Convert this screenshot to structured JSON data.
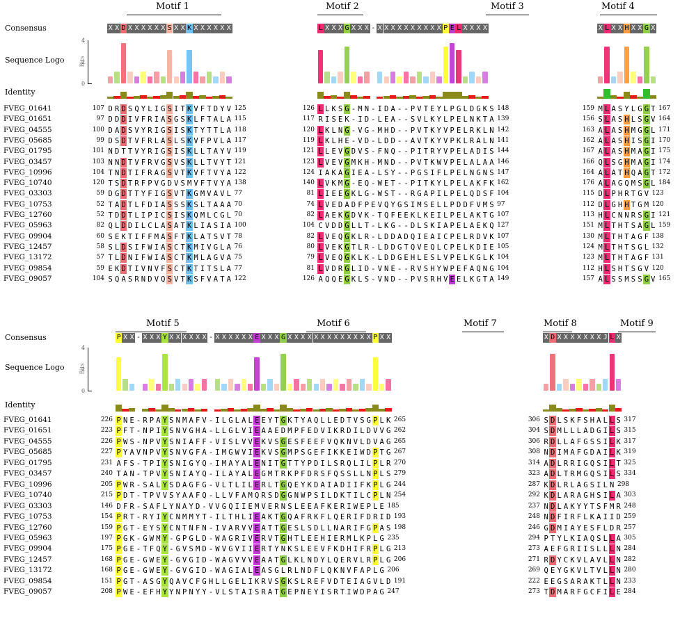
{
  "labels": {
    "consensus": "Consensus",
    "logo": "Sequence Logo",
    "identity": "Identity",
    "bits": "Bits",
    "axis_ticks": [
      "4",
      "2",
      "0"
    ]
  },
  "colors": {
    "D": "#ef6b74",
    "E": "#c23bd0",
    "K": "#6ec1f2",
    "R": "#6ec1f2",
    "S": "#f6b29e",
    "T": "#f6b29e",
    "G": "#8fce45",
    "Y": "#a8e23e",
    "P": "#ffff33",
    "L": "#ee2a72",
    "H": "#ff9a3c",
    "consensus_bg": "#666666",
    "identity_high": "#8a8a1a",
    "identity_low": "#e51b1b",
    "identity_full": "#2fbf2f"
  },
  "top": {
    "blocks": [
      {
        "consensus": "XXDXXXXXXSXXKXXXXXX",
        "highlight": {
          "2": "D",
          "9": "S",
          "12": "K"
        }
      },
      {
        "consensus": "LXXXGXXX-XXXXXXXXXXPELXXXX",
        "highlight": {
          "0": "L",
          "4": "G",
          "19": "P",
          "20": "E",
          "21": "L"
        }
      },
      {
        "consensus": "XLXXHXXGX",
        "highlight": {
          "1": "L",
          "4": "H",
          "7": "G"
        }
      }
    ],
    "motifs": [
      {
        "label": "Motif 1"
      },
      {
        "label": "Motif 2"
      },
      {
        "label": "Motif 3"
      },
      {
        "label": "Motif 4"
      }
    ],
    "sequences": [
      {
        "name": "FVEG_01641",
        "n": [
          "107",
          "125",
          "126",
          "148",
          "159",
          "167"
        ],
        "s": [
          "DRDSQYLIGSITKVFTDYV",
          "LLKSG-MN-IDA--PVTEYLPGLDGKS",
          "MLASYLGGT"
        ]
      },
      {
        "name": "FVEG_01651",
        "n": [
          "97",
          "115",
          "117",
          "139",
          "156",
          "164"
        ],
        "s": [
          "DDDIVFRIASGSKLFTALA",
          "RISEK-ID-LEA--SVLKYLPELNKTA",
          "SLASHLSGV"
        ]
      },
      {
        "name": "FVEG_04555",
        "n": [
          "100",
          "118",
          "120",
          "142",
          "163",
          "171"
        ],
        "s": [
          "DADSVYRIGSISKTYTTLA",
          "LKLNG-VG-MHD--PVTKYVPELRKLN",
          "ALASHMGGL"
        ]
      },
      {
        "name": "FVEG_05685",
        "n": [
          "99",
          "117",
          "119",
          "141",
          "162",
          "170"
        ],
        "s": [
          "DSDTVFRLASLSKVFPVLA",
          "LKLHE-VD-LDD--AVTKYVPKLRALN",
          "ALASHISGI"
        ]
      },
      {
        "name": "FVEG_01795",
        "n": [
          "101",
          "119",
          "121",
          "144",
          "167",
          "175"
        ],
        "s": [
          "NDTTVYRIGSISKLLTAYV",
          "LLEVGDVS-FNQ--PITRYVPELADIS",
          "ALASHMAGI"
        ]
      },
      {
        "name": "FVEG_03457",
        "n": [
          "103",
          "121",
          "123",
          "146",
          "166",
          "174"
        ],
        "s": [
          "NNDTVFRVGSVSKLLTVYT",
          "LVEVGMKH-MND--PVTKWVPELALAA",
          "QLSGHMAGI"
        ]
      },
      {
        "name": "FVEG_10996",
        "n": [
          "104",
          "122",
          "124",
          "147",
          "164",
          "172"
        ],
        "s": [
          "TNDTIFRAGSVTKVFTVYA",
          "IAKAGIEA-LSY--PGSIFLPELNGNS",
          "ALATHQAGT"
        ]
      },
      {
        "name": "FVEG_10740",
        "n": [
          "120",
          "138",
          "140",
          "162",
          "176",
          "184"
        ],
        "s": [
          "TSDTRFPVGDVSMVFTVYA",
          "LVKMG-EQ-WET--PITKYLPELAKFK",
          "ALAGQMSGL"
        ]
      },
      {
        "name": "FVEG_03303",
        "n": [
          "59",
          "77",
          "81",
          "104",
          "115",
          "123"
        ],
        "s": [
          "DGDTTYFIGSVTKGMVAVL",
          "LIEEGKLG-WST--RGAPILPELQDSF",
          "DLPHRTGV"
        ]
      },
      {
        "name": "FVEG_10753",
        "n": [
          "52",
          "70",
          "74",
          "97",
          "112",
          "120"
        ],
        "s": [
          "TADTLFDIASSSKSLTAAA",
          "LVEDADFPEVQYGSIMSELLPDDFVMS",
          "DLGHHTGM"
        ]
      },
      {
        "name": "FVEG_12760",
        "n": [
          "52",
          "70",
          "82",
          "107",
          "113",
          "121"
        ],
        "s": [
          "TDDTLIPICSISKQMLCGL",
          "LAEKGDVK-TQFEEKLKEILPELAKTG",
          "HLCNNRSGI"
        ]
      },
      {
        "name": "FVEG_05963",
        "n": [
          "82",
          "100",
          "104",
          "127",
          "151",
          "159"
        ],
        "s": [
          "QLDDILCLASATKLIASIA",
          "CVDDGLLT-LKG--DLSKIAPELAEKQ",
          "MLTHTSAGL"
        ]
      },
      {
        "name": "FVEG_09904",
        "n": [
          "60",
          "78",
          "82",
          "107",
          "130",
          "138"
        ],
        "s": [
          "SEKTIFFMASFTKLATSVT",
          "LVEQGKLR-LDDADQIEAICPELRDVK",
          "MLTHTAGF"
        ]
      },
      {
        "name": "FVEG_12457",
        "n": [
          "58",
          "76",
          "80",
          "105",
          "124",
          "132"
        ],
        "s": [
          "SLDSIFWIASCTKMIVGLA",
          "LVEKGTLR-LDDGTQVEQLCPELKDIE",
          "MLTHTSGL"
        ]
      },
      {
        "name": "FVEG_13172",
        "n": [
          "57",
          "75",
          "79",
          "104",
          "123",
          "131"
        ],
        "s": [
          "TLDNIFWIASCTKMLAGVA",
          "LVEQGKLK-LDDGEHLESLVPELKGLK",
          "MLTHTAGF"
        ]
      },
      {
        "name": "FVEG_09854",
        "n": [
          "59",
          "77",
          "81",
          "104",
          "112",
          "120"
        ],
        "s": [
          "EKDTIVNVFSCTKTITSLA",
          "LVDRGLID-VNE--RVSHYWPEFAQNG",
          "HLSHTSGV"
        ]
      },
      {
        "name": "FVEG_09057",
        "n": [
          "104",
          "122",
          "126",
          "149",
          "157",
          "165"
        ],
        "s": [
          "SQASRNDVQSVTKSFVATA",
          "AQQEGKLS-VND--PVSRHVEELKGTA",
          "ALSSMSSGV"
        ]
      }
    ]
  },
  "bottom": {
    "blocks": [
      {
        "consensus": "PXX-XXXYXXXXXX-XXXXXXEXXXGXXXXXXXXXXXXXPXX",
        "highlight": {
          "0": "P",
          "7": "Y",
          "21": "E",
          "25": "G",
          "39": "P"
        }
      },
      {
        "consensus": "XDXXXXXXXJLX",
        "highlight": {
          "1": "D",
          "10": "L"
        }
      }
    ],
    "motifs": [
      {
        "label": "Motif 5"
      },
      {
        "label": "Motif 6"
      },
      {
        "label": "Motif 7"
      },
      {
        "label": "Motif 8"
      },
      {
        "label": "Motif 9"
      }
    ],
    "sequences": [
      {
        "name": "FVEG_01641",
        "n": [
          "226",
          "265",
          "306",
          "317"
        ],
        "s": [
          "PNE-RPAYSNMAFV-ILGLALEEYTGKTYAQLLEDTVSGPLK",
          "SDLSKFSHALLS"
        ]
      },
      {
        "name": "FVEG_01651",
        "n": [
          "223",
          "262",
          "304",
          "315"
        ],
        "s": [
          "PFT-NPIYSNVGHA-LLGLVIEAAEDMPFEDVIKRDILDVVG",
          "SDMLLLADGILS"
        ]
      },
      {
        "name": "FVEG_04555",
        "n": [
          "226",
          "265",
          "306",
          "317"
        ],
        "s": [
          "PWS-NPVYSNIAFF-VISLVVEKVSGESFEEFVQKNVLDVAG",
          "RDLLAFGSSILK"
        ]
      },
      {
        "name": "FVEG_05685",
        "n": [
          "227",
          "267",
          "308",
          "319"
        ],
        "s": [
          "PYAVNPVYSNVGFA-IMGWVIEKVSGMPSGEFIKKEIWDPTG",
          "NDIMAFGDAILK"
        ]
      },
      {
        "name": "FVEG_01795",
        "n": [
          "231",
          "270",
          "314",
          "325"
        ],
        "s": [
          "AFS-TPIYSNIGYQ-IMAYALENITGTTYPDILSRQLILPLR",
          "ADLRRIGQSILT"
        ]
      },
      {
        "name": "FVEG_03457",
        "n": [
          "240",
          "279",
          "323",
          "334"
        ],
        "s": [
          "TAN-TPVYSNIAYQ-ILAYALEGMTRKPFDRSFQSSLLNPLS",
          "ADLTRMGQSILS"
        ]
      },
      {
        "name": "FVEG_10996",
        "n": [
          "205",
          "244",
          "287",
          "298"
        ],
        "s": [
          "PWR-SALYSDAGFG-VLTLILERLTGQEYKDAIADIIFKPLG",
          "KDLRLAGSILN"
        ]
      },
      {
        "name": "FVEG_10740",
        "n": [
          "215",
          "254",
          "292",
          "303"
        ],
        "s": [
          "PDT-TPVVSYAAFQ-LLVFAMQRSDGGNWPSILDKTILCPLN",
          "KDLARAGHSILA"
        ]
      },
      {
        "name": "FVEG_03303",
        "n": [
          "146",
          "185",
          "237",
          "248"
        ],
        "s": [
          "DFR-SAFLYNAYD-VVGQIIEMVERNSLEEAFKERIWEPLE",
          "NDLAKYYTSFMR"
        ]
      },
      {
        "name": "FVEG_10753",
        "n": [
          "154",
          "193",
          "248",
          "259"
        ],
        "s": [
          "PRT-RYIYCNMMYT-ILTHLIEAKTGQAFRKFLQERIFDRID",
          "NDFIRFLKAIID"
        ]
      },
      {
        "name": "FVEG_12760",
        "n": [
          "159",
          "198",
          "246",
          "257"
        ],
        "s": [
          "PGT-EYSYCNTNFN-IVARVVEATTGESLSDLLNARIFGPAS",
          "GDMIAYESFLDR"
        ]
      },
      {
        "name": "FVEG_05963",
        "n": [
          "197",
          "235",
          "294",
          "305"
        ],
        "s": [
          "PGK-GWMY-GPGLD-WAGRIVERVTGHTLEEHIERMLKPLG",
          "PTYLKIAQSLLA"
        ]
      },
      {
        "name": "FVEG_09904",
        "n": [
          "175",
          "213",
          "273",
          "284"
        ],
        "s": [
          "PGE-TFQY-GVSMD-WVGVIIERTYNKSLEEVFKDHIFRPLG",
          "AEFGRIISLLLN"
        ]
      },
      {
        "name": "FVEG_12457",
        "n": [
          "168",
          "206",
          "271",
          "282"
        ],
        "s": [
          "PGE-GWEY-GVGID-WAGVVVEAATGLKLNDYLQERVLRPLG",
          "RDYCKVLAVLLN"
        ]
      },
      {
        "name": "FVEG_13172",
        "n": [
          "168",
          "206",
          "269",
          "280"
        ],
        "s": [
          "PGE-GWEY-GVGID-WAGIALEASGLRLNDFLQKNVFAPLG",
          "QEYGKVLTVLLN"
        ]
      },
      {
        "name": "FVEG_09854",
        "n": [
          "151",
          "191",
          "222",
          "233"
        ],
        "s": [
          "PGT-ASGYQAVCFGHLLGELIKRVSGKSLREFVDTEIAGVLD",
          "EEGSARAKTLLN"
        ]
      },
      {
        "name": "FVEG_09057",
        "n": [
          "208",
          "247",
          "273",
          "284"
        ],
        "s": [
          "PWE-EFHYYNPNYY-VLSTAISRATGEPNEYISRTIWDPAG",
          "TDMARFGCFILE"
        ]
      }
    ]
  }
}
